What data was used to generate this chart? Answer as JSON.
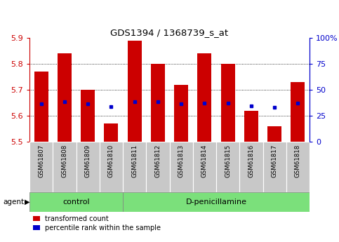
{
  "title": "GDS1394 / 1368739_s_at",
  "samples": [
    "GSM61807",
    "GSM61808",
    "GSM61809",
    "GSM61810",
    "GSM61811",
    "GSM61812",
    "GSM61813",
    "GSM61814",
    "GSM61815",
    "GSM61816",
    "GSM61817",
    "GSM61818"
  ],
  "bar_values": [
    5.77,
    5.84,
    5.7,
    5.57,
    5.89,
    5.8,
    5.72,
    5.84,
    5.8,
    5.62,
    5.56,
    5.73
  ],
  "percentile_values": [
    5.645,
    5.655,
    5.645,
    5.635,
    5.655,
    5.655,
    5.645,
    5.65,
    5.648,
    5.638,
    5.633,
    5.65
  ],
  "ylim": [
    5.5,
    5.9
  ],
  "yticks": [
    5.5,
    5.6,
    5.7,
    5.8,
    5.9
  ],
  "right_ytick_pcts": [
    0,
    25,
    50,
    75,
    100
  ],
  "right_ytick_labels": [
    "0",
    "25",
    "50",
    "75",
    "100%"
  ],
  "bar_color": "#cc0000",
  "percentile_color": "#0000cc",
  "bar_bottom": 5.5,
  "groups": [
    {
      "label": "control",
      "start": 0,
      "end": 3
    },
    {
      "label": "D-penicillamine",
      "start": 4,
      "end": 11
    }
  ],
  "group_color": "#7be07b",
  "agent_label": "agent",
  "legend_items": [
    {
      "label": "transformed count",
      "color": "#cc0000"
    },
    {
      "label": "percentile rank within the sample",
      "color": "#0000cc"
    }
  ],
  "tick_bg_color": "#c8c8c8",
  "grid_color": "black",
  "left_axis_color": "#cc0000",
  "right_axis_color": "#0000cc",
  "figsize": [
    4.83,
    3.45
  ],
  "dpi": 100
}
